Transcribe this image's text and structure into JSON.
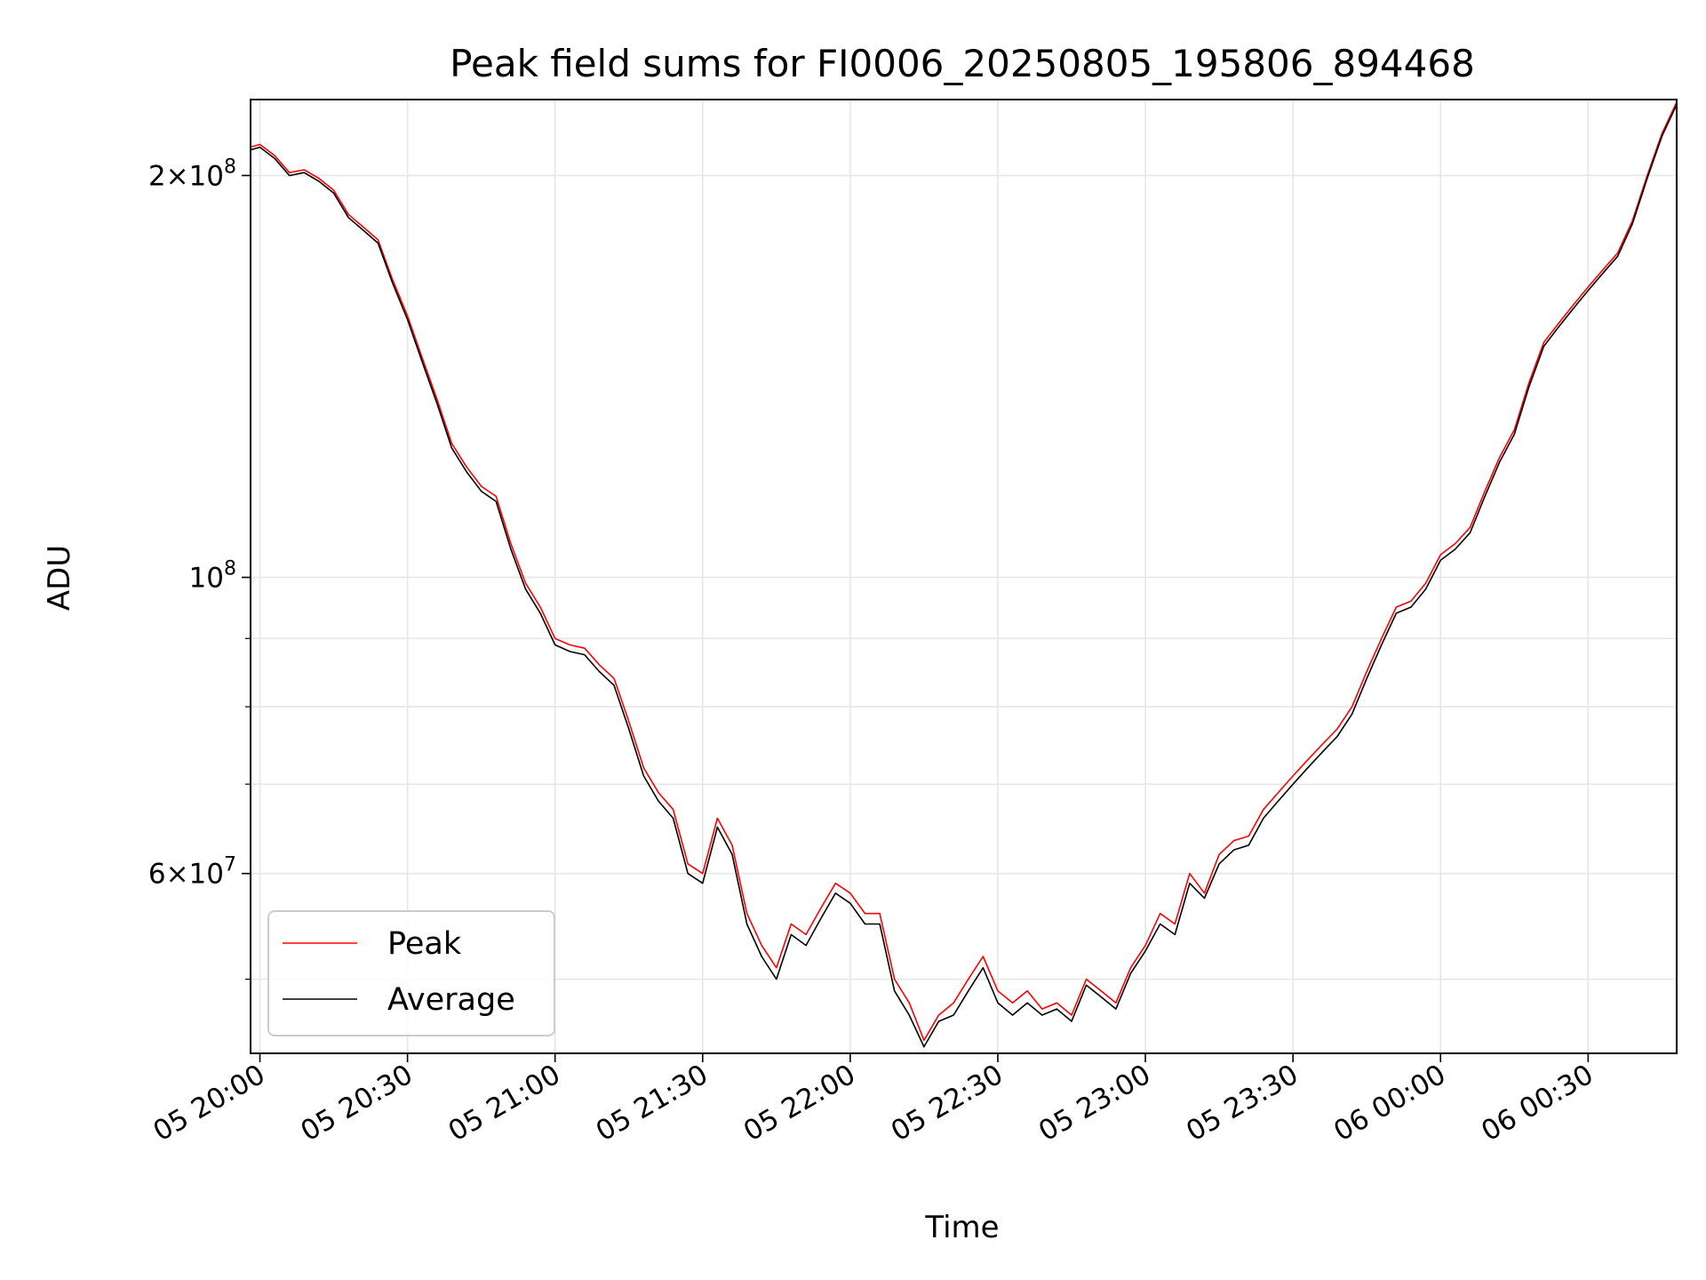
{
  "chart_data": {
    "type": "line",
    "title": "Peak field sums for FI0006_20250805_195806_894468",
    "xlabel": "Time",
    "ylabel": "ADU",
    "xlim": [
      "2025-08-05 19:58:06",
      "2025-08-06 00:48:00"
    ],
    "ylim": [
      44000000,
      228000000
    ],
    "yscale": "log",
    "grid": true,
    "legend": "lower-left",
    "x_ticks": [
      {
        "value": "2025-08-05 20:00",
        "label": "05 20:00"
      },
      {
        "value": "2025-08-05 20:30",
        "label": "05 20:30"
      },
      {
        "value": "2025-08-05 21:00",
        "label": "05 21:00"
      },
      {
        "value": "2025-08-05 21:30",
        "label": "05 21:30"
      },
      {
        "value": "2025-08-05 22:00",
        "label": "05 22:00"
      },
      {
        "value": "2025-08-05 22:30",
        "label": "05 22:30"
      },
      {
        "value": "2025-08-05 23:00",
        "label": "05 23:00"
      },
      {
        "value": "2025-08-05 23:30",
        "label": "05 23:30"
      },
      {
        "value": "2025-08-06 00:00",
        "label": "06 00:00"
      },
      {
        "value": "2025-08-06 00:30",
        "label": "06 00:30"
      }
    ],
    "y_major_ticks": [
      {
        "value": 60000000,
        "mantissa": "6",
        "exponent": "7"
      },
      {
        "value": 100000000,
        "mantissa": "",
        "exponent": "8"
      },
      {
        "value": 200000000,
        "mantissa": "2",
        "exponent": "8"
      }
    ],
    "y_minor_ticks": [
      50000000,
      70000000,
      80000000,
      90000000,
      300000000
    ],
    "series": [
      {
        "name": "Peak",
        "color": "#ff0000",
        "x": [
          "2025-08-05 19:58",
          "2025-08-05 20:00",
          "2025-08-05 20:03",
          "2025-08-05 20:06",
          "2025-08-05 20:09",
          "2025-08-05 20:12",
          "2025-08-05 20:15",
          "2025-08-05 20:18",
          "2025-08-05 20:21",
          "2025-08-05 20:24",
          "2025-08-05 20:27",
          "2025-08-05 20:30",
          "2025-08-05 20:33",
          "2025-08-05 20:36",
          "2025-08-05 20:39",
          "2025-08-05 20:42",
          "2025-08-05 20:45",
          "2025-08-05 20:48",
          "2025-08-05 20:51",
          "2025-08-05 20:54",
          "2025-08-05 20:57",
          "2025-08-05 21:00",
          "2025-08-05 21:03",
          "2025-08-05 21:06",
          "2025-08-05 21:09",
          "2025-08-05 21:12",
          "2025-08-05 21:15",
          "2025-08-05 21:18",
          "2025-08-05 21:21",
          "2025-08-05 21:24",
          "2025-08-05 21:27",
          "2025-08-05 21:30",
          "2025-08-05 21:33",
          "2025-08-05 21:36",
          "2025-08-05 21:39",
          "2025-08-05 21:42",
          "2025-08-05 21:45",
          "2025-08-05 21:48",
          "2025-08-05 21:51",
          "2025-08-05 21:54",
          "2025-08-05 21:57",
          "2025-08-05 22:00",
          "2025-08-05 22:03",
          "2025-08-05 22:06",
          "2025-08-05 22:09",
          "2025-08-05 22:12",
          "2025-08-05 22:15",
          "2025-08-05 22:18",
          "2025-08-05 22:21",
          "2025-08-05 22:24",
          "2025-08-05 22:27",
          "2025-08-05 22:30",
          "2025-08-05 22:33",
          "2025-08-05 22:36",
          "2025-08-05 22:39",
          "2025-08-05 22:42",
          "2025-08-05 22:45",
          "2025-08-05 22:48",
          "2025-08-05 22:51",
          "2025-08-05 22:54",
          "2025-08-05 22:57",
          "2025-08-05 23:00",
          "2025-08-05 23:03",
          "2025-08-05 23:06",
          "2025-08-05 23:09",
          "2025-08-05 23:12",
          "2025-08-05 23:15",
          "2025-08-05 23:18",
          "2025-08-05 23:21",
          "2025-08-05 23:24",
          "2025-08-05 23:27",
          "2025-08-05 23:30",
          "2025-08-05 23:33",
          "2025-08-05 23:36",
          "2025-08-05 23:39",
          "2025-08-05 23:42",
          "2025-08-05 23:45",
          "2025-08-05 23:48",
          "2025-08-05 23:51",
          "2025-08-05 23:54",
          "2025-08-05 23:57",
          "2025-08-06 00:00",
          "2025-08-06 00:03",
          "2025-08-06 00:06",
          "2025-08-06 00:09",
          "2025-08-06 00:12",
          "2025-08-06 00:15",
          "2025-08-06 00:18",
          "2025-08-06 00:21",
          "2025-08-06 00:24",
          "2025-08-06 00:27",
          "2025-08-06 00:30",
          "2025-08-06 00:33",
          "2025-08-06 00:36",
          "2025-08-06 00:39",
          "2025-08-06 00:42",
          "2025-08-06 00:45",
          "2025-08-06 00:48"
        ],
        "values": [
          210000000,
          211000000,
          207000000,
          201000000,
          202000000,
          199000000,
          195000000,
          187000000,
          183000000,
          179000000,
          167000000,
          157000000,
          146000000,
          136000000,
          126000000,
          121000000,
          117000000,
          115000000,
          106000000,
          99000000,
          95000000,
          90000000,
          89000000,
          88500000,
          86000000,
          84000000,
          78000000,
          72000000,
          69000000,
          67000000,
          61000000,
          60000000,
          66000000,
          63000000,
          56000000,
          53000000,
          51000000,
          55000000,
          54000000,
          56500000,
          59000000,
          58000000,
          56000000,
          56000000,
          50000000,
          48000000,
          45000000,
          47000000,
          48000000,
          50000000,
          52000000,
          49000000,
          48000000,
          49000000,
          47500000,
          48000000,
          47000000,
          50000000,
          49000000,
          48000000,
          51000000,
          53000000,
          56000000,
          55000000,
          60000000,
          58000000,
          62000000,
          63500000,
          64000000,
          67000000,
          69000000,
          71000000,
          73000000,
          75000000,
          77000000,
          80000000,
          85000000,
          90000000,
          95000000,
          96000000,
          99000000,
          104000000,
          106000000,
          109000000,
          116000000,
          123000000,
          129000000,
          140000000,
          150000000,
          155000000,
          160000000,
          165000000,
          170000000,
          175000000,
          185000000,
          200000000,
          215000000,
          227000000
        ]
      },
      {
        "name": "Average",
        "color": "#000000",
        "x": [
          "2025-08-05 19:58",
          "2025-08-05 20:00",
          "2025-08-05 20:03",
          "2025-08-05 20:06",
          "2025-08-05 20:09",
          "2025-08-05 20:12",
          "2025-08-05 20:15",
          "2025-08-05 20:18",
          "2025-08-05 20:21",
          "2025-08-05 20:24",
          "2025-08-05 20:27",
          "2025-08-05 20:30",
          "2025-08-05 20:33",
          "2025-08-05 20:36",
          "2025-08-05 20:39",
          "2025-08-05 20:42",
          "2025-08-05 20:45",
          "2025-08-05 20:48",
          "2025-08-05 20:51",
          "2025-08-05 20:54",
          "2025-08-05 20:57",
          "2025-08-05 21:00",
          "2025-08-05 21:03",
          "2025-08-05 21:06",
          "2025-08-05 21:09",
          "2025-08-05 21:12",
          "2025-08-05 21:15",
          "2025-08-05 21:18",
          "2025-08-05 21:21",
          "2025-08-05 21:24",
          "2025-08-05 21:27",
          "2025-08-05 21:30",
          "2025-08-05 21:33",
          "2025-08-05 21:36",
          "2025-08-05 21:39",
          "2025-08-05 21:42",
          "2025-08-05 21:45",
          "2025-08-05 21:48",
          "2025-08-05 21:51",
          "2025-08-05 21:54",
          "2025-08-05 21:57",
          "2025-08-05 22:00",
          "2025-08-05 22:03",
          "2025-08-05 22:06",
          "2025-08-05 22:09",
          "2025-08-05 22:12",
          "2025-08-05 22:15",
          "2025-08-05 22:18",
          "2025-08-05 22:21",
          "2025-08-05 22:24",
          "2025-08-05 22:27",
          "2025-08-05 22:30",
          "2025-08-05 22:33",
          "2025-08-05 22:36",
          "2025-08-05 22:39",
          "2025-08-05 22:42",
          "2025-08-05 22:45",
          "2025-08-05 22:48",
          "2025-08-05 22:51",
          "2025-08-05 22:54",
          "2025-08-05 22:57",
          "2025-08-05 23:00",
          "2025-08-05 23:03",
          "2025-08-05 23:06",
          "2025-08-05 23:09",
          "2025-08-05 23:12",
          "2025-08-05 23:15",
          "2025-08-05 23:18",
          "2025-08-05 23:21",
          "2025-08-05 23:24",
          "2025-08-05 23:27",
          "2025-08-05 23:30",
          "2025-08-05 23:33",
          "2025-08-05 23:36",
          "2025-08-05 23:39",
          "2025-08-05 23:42",
          "2025-08-05 23:45",
          "2025-08-05 23:48",
          "2025-08-05 23:51",
          "2025-08-05 23:54",
          "2025-08-05 23:57",
          "2025-08-06 00:00",
          "2025-08-06 00:03",
          "2025-08-06 00:06",
          "2025-08-06 00:09",
          "2025-08-06 00:12",
          "2025-08-06 00:15",
          "2025-08-06 00:18",
          "2025-08-06 00:21",
          "2025-08-06 00:24",
          "2025-08-06 00:27",
          "2025-08-06 00:30",
          "2025-08-06 00:33",
          "2025-08-06 00:36",
          "2025-08-06 00:39",
          "2025-08-06 00:42",
          "2025-08-06 00:45",
          "2025-08-06 00:48"
        ],
        "values": [
          209000000,
          210000000,
          206000000,
          200000000,
          201000000,
          198000000,
          194000000,
          186000000,
          182000000,
          178000000,
          166000000,
          156000000,
          145000000,
          135000000,
          125000000,
          120000000,
          116000000,
          114000000,
          105000000,
          98000000,
          94000000,
          89000000,
          88000000,
          87500000,
          85000000,
          83000000,
          77000000,
          71000000,
          68000000,
          66000000,
          60000000,
          59000000,
          65000000,
          62000000,
          55000000,
          52000000,
          50000000,
          54000000,
          53000000,
          55500000,
          58000000,
          57000000,
          55000000,
          55000000,
          49000000,
          47000000,
          44500000,
          46500000,
          47000000,
          49000000,
          51000000,
          48000000,
          47000000,
          48000000,
          47000000,
          47500000,
          46500000,
          49500000,
          48500000,
          47500000,
          50500000,
          52500000,
          55000000,
          54000000,
          59000000,
          57500000,
          61000000,
          62500000,
          63000000,
          66000000,
          68000000,
          70000000,
          72000000,
          74000000,
          76000000,
          79000000,
          84000000,
          89000000,
          94000000,
          95000000,
          98000000,
          103000000,
          105000000,
          108000000,
          115000000,
          122000000,
          128000000,
          139000000,
          149000000,
          154000000,
          159000000,
          164000000,
          169000000,
          174000000,
          184000000,
          199000000,
          214000000,
          226000000
        ]
      }
    ]
  }
}
